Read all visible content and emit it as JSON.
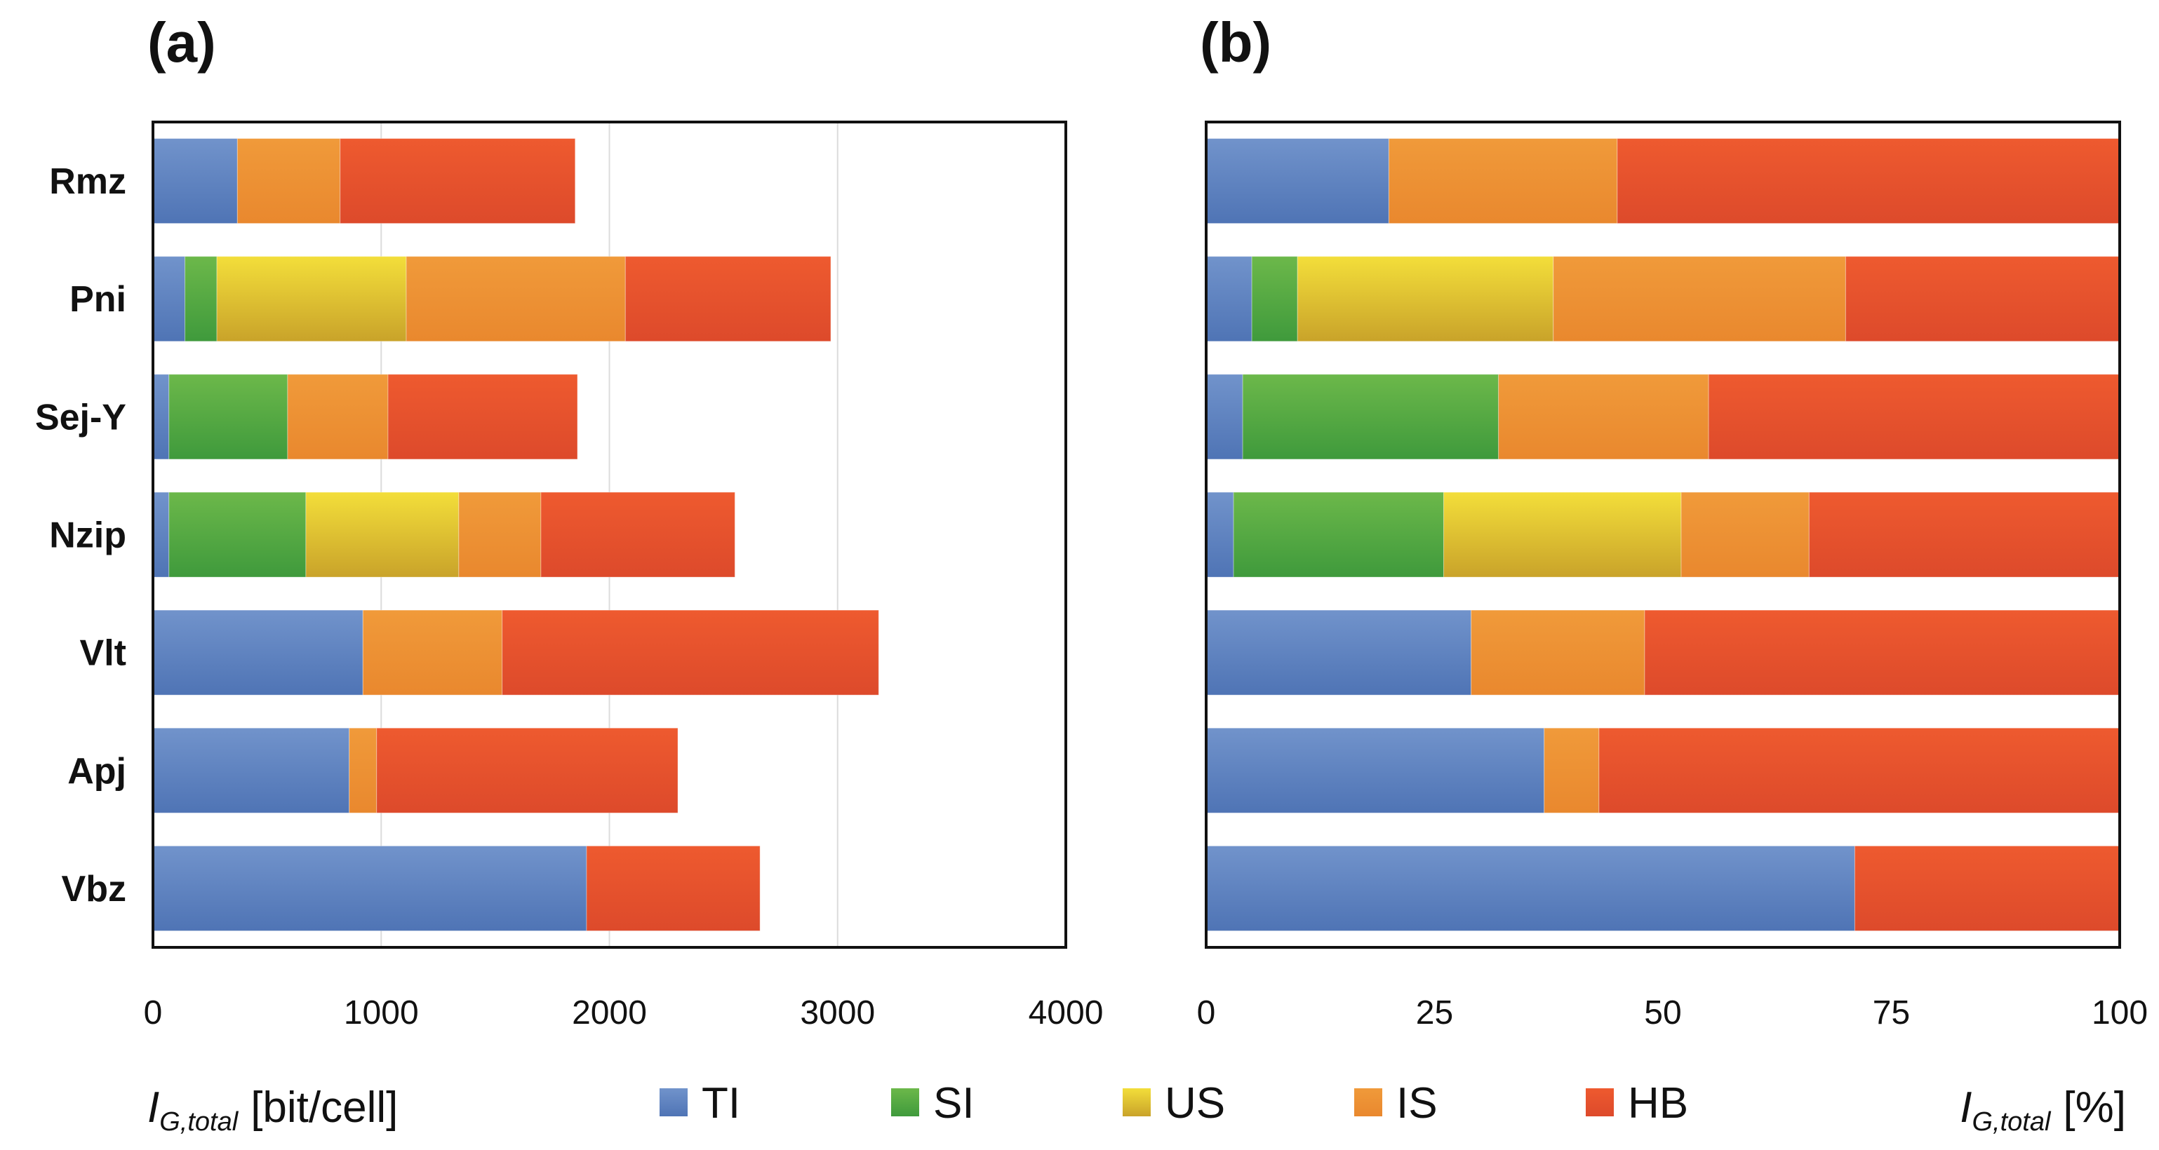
{
  "chart_data": [
    {
      "panel": "(a)",
      "type": "bar",
      "orientation": "horizontal",
      "stacked": true,
      "categories": [
        "Rmz",
        "Pni",
        "Sej-Y",
        "Nzip",
        "Vlt",
        "Apj",
        "Vbz"
      ],
      "series": [
        {
          "name": "TI",
          "values": [
            370,
            140,
            70,
            70,
            920,
            860,
            1900
          ]
        },
        {
          "name": "SI",
          "values": [
            0,
            140,
            520,
            600,
            0,
            0,
            0
          ]
        },
        {
          "name": "US",
          "values": [
            0,
            830,
            0,
            670,
            0,
            0,
            0
          ]
        },
        {
          "name": "IS",
          "values": [
            450,
            960,
            440,
            360,
            610,
            120,
            0
          ]
        },
        {
          "name": "HB",
          "values": [
            1030,
            900,
            830,
            850,
            1650,
            1320,
            760
          ]
        }
      ],
      "xlim": [
        0,
        4000
      ],
      "xticks": [
        "0",
        "1000",
        "2000",
        "3000",
        "4000"
      ],
      "grid": true,
      "xlabel_symbol": "I",
      "xlabel_sub": "G,total",
      "xlabel_unit": "[bit/cell]"
    },
    {
      "panel": "(b)",
      "type": "bar",
      "orientation": "horizontal",
      "stacked": true,
      "categories": [
        "Rmz",
        "Pni",
        "Sej-Y",
        "Nzip",
        "Vlt",
        "Apj",
        "Vbz"
      ],
      "series": [
        {
          "name": "TI",
          "values": [
            20,
            5,
            4,
            3,
            29,
            37,
            71
          ]
        },
        {
          "name": "SI",
          "values": [
            0,
            5,
            28,
            23,
            0,
            0,
            0
          ]
        },
        {
          "name": "US",
          "values": [
            0,
            28,
            0,
            26,
            0,
            0,
            0
          ]
        },
        {
          "name": "IS",
          "values": [
            25,
            32,
            23,
            14,
            19,
            6,
            0
          ]
        },
        {
          "name": "HB",
          "values": [
            55,
            30,
            45,
            34,
            52,
            57,
            29
          ]
        }
      ],
      "xlim": [
        0,
        100
      ],
      "xticks": [
        "0",
        "25",
        "50",
        "75",
        "100"
      ],
      "grid": false,
      "xlabel_symbol": "I",
      "xlabel_sub": "G,total",
      "xlabel_unit": "[%]"
    }
  ],
  "legend": [
    {
      "name": "TI",
      "color": "#4f74b5",
      "color_light": "#7193cb"
    },
    {
      "name": "SI",
      "color": "#3f9a3c",
      "color_light": "#6cb84a"
    },
    {
      "name": "US",
      "color": "#c9a32a",
      "color_light": "#f3de3a"
    },
    {
      "name": "IS",
      "color": "#e9882e",
      "color_light": "#f09a3a"
    },
    {
      "name": "HB",
      "color": "#dd4a2b",
      "color_light": "#ee5a2f"
    }
  ]
}
